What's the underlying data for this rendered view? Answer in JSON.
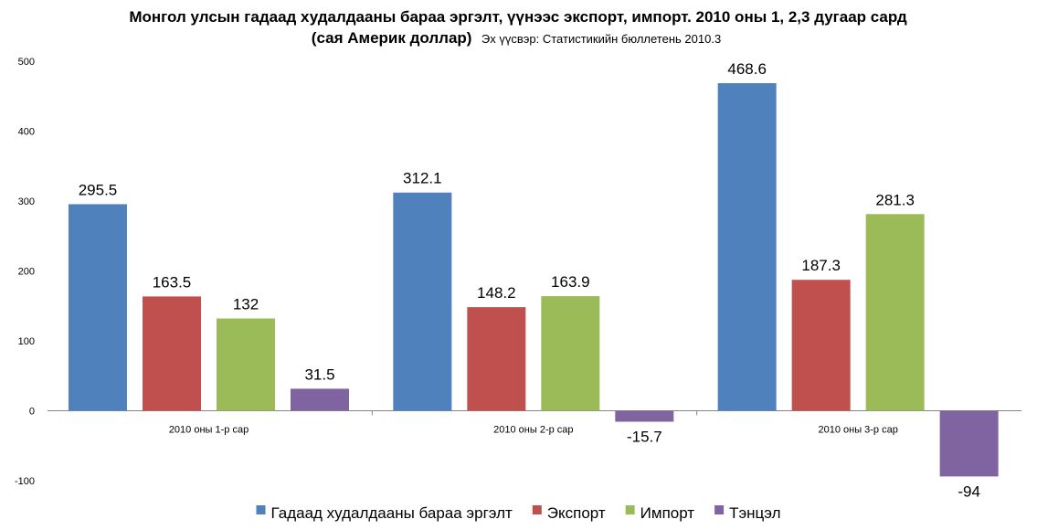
{
  "chart_data": {
    "type": "bar",
    "title": "Монгол улсын гадаад худалдааны бараа эргэлт, үүнээс экспорт, импорт. 2010 оны 1, 2,3 дугаар сард",
    "subtitle": "(сая Америк доллар)",
    "source_note": "Эх үүсвэр: Статистикийн бюллетень 2010.3",
    "categories": [
      "2010 оны 1-р сар",
      "2010 оны 2-р сар",
      "2010 оны 3-р сар"
    ],
    "series": [
      {
        "name": "Гадаад худалдааны бараа эргэлт",
        "values": [
          295.5,
          312.1,
          468.6
        ],
        "labels": [
          "295.5",
          "312.1",
          "468.6"
        ],
        "color": "#4F81BD"
      },
      {
        "name": "Экспорт",
        "values": [
          163.5,
          148.2,
          187.3
        ],
        "labels": [
          "163.5",
          "148.2",
          "187.3"
        ],
        "color": "#C0504D"
      },
      {
        "name": "Импорт",
        "values": [
          132,
          163.9,
          281.3
        ],
        "labels": [
          "132",
          "163.9",
          "281.3"
        ],
        "color": "#9BBB59"
      },
      {
        "name": "Тэнцэл",
        "values": [
          31.5,
          -15.7,
          -94
        ],
        "labels": [
          "31.5",
          "-15.7",
          "-94"
        ],
        "color": "#8064A2"
      }
    ],
    "y_ticks": [
      "-100",
      "0",
      "100",
      "200",
      "300",
      "400",
      "500"
    ],
    "ylim": [
      -100,
      500
    ],
    "grid": false,
    "legend_position": "bottom"
  }
}
